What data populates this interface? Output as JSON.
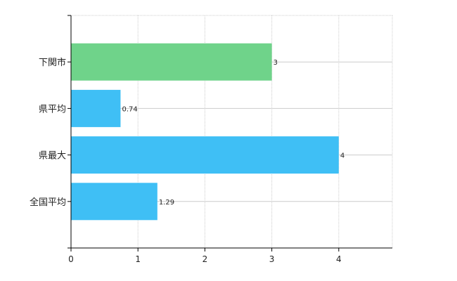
{
  "chart_data": {
    "type": "bar",
    "orientation": "horizontal",
    "categories": [
      "下関市",
      "県平均",
      "県最大",
      "全国平均"
    ],
    "values": [
      3,
      0.74,
      4,
      1.29
    ],
    "value_labels": [
      "3",
      "0.74",
      "4",
      "1.29"
    ],
    "xlim": [
      0,
      4.8
    ],
    "x_ticks": [
      0,
      1,
      2,
      3,
      4
    ],
    "grid": true,
    "colors": {
      "highlight": "#6fd38a",
      "default": "#3fbff5",
      "grid": "#cccccc",
      "axis": "#000000"
    },
    "highlight_index": 0
  }
}
